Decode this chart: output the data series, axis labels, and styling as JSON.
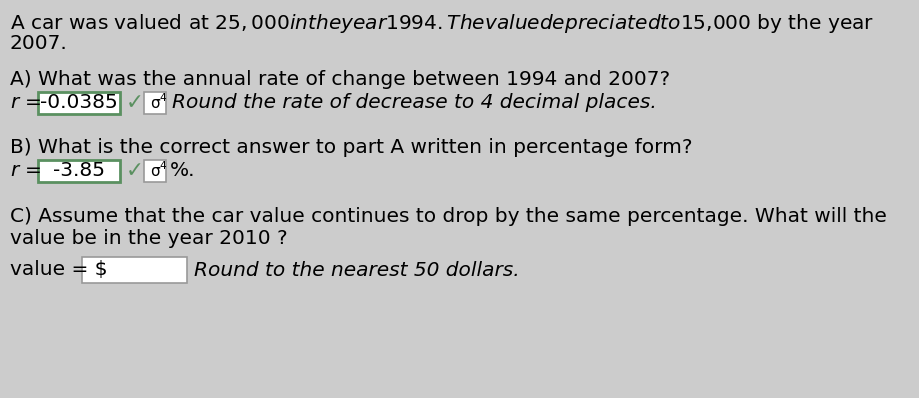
{
  "bg_color": "#cccccc",
  "text_color": "#000000",
  "line1": "A car was valued at $25,000 in the year 1994. The value depreciated to $15,000 by the year",
  "line2": "2007.",
  "sectionA_question": "A) What was the annual rate of change between 1994 and 2007?",
  "sectionA_value": "-0.0385",
  "sectionA_tail": "Round the rate of decrease to 4 decimal places.",
  "sectionB_question": "B) What is the correct answer to part A written in percentage form?",
  "sectionB_value": "-3.85",
  "sectionC_question1": "C) Assume that the car value continues to drop by the same percentage. What will the",
  "sectionC_question2": "value be in the year 2010 ?",
  "sectionC_tail": "Round to the nearest 50 dollars.",
  "box_fill": "#ffffff",
  "box_border_green": "#5a9060",
  "box_border_gray": "#999999",
  "check_color": "#5a9060",
  "font_size": 14.5
}
